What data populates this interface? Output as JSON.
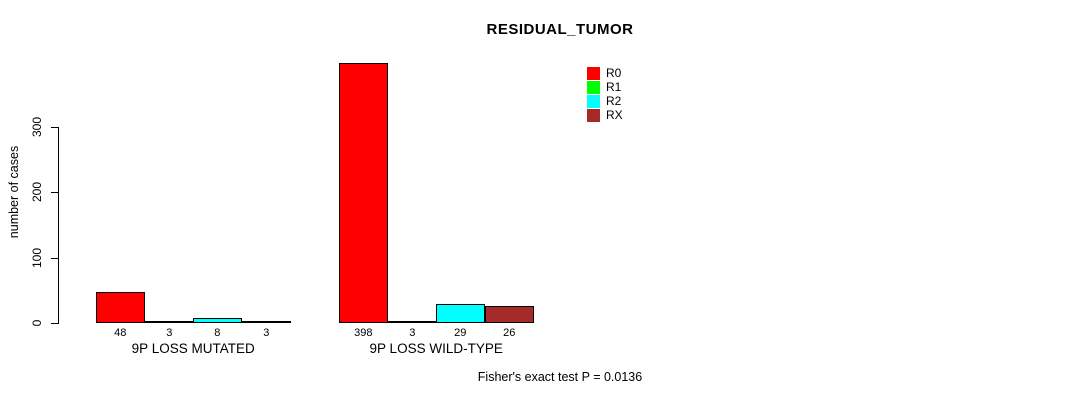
{
  "chart_data": {
    "type": "bar",
    "title": "RESIDUAL_TUMOR",
    "ylabel": "number of cases",
    "xlabel": "",
    "ylim": [
      0,
      398
    ],
    "yticks": [
      0,
      100,
      200,
      300
    ],
    "grid": false,
    "legend_position": "top-right",
    "categories": [
      "9P LOSS MUTATED",
      "9P LOSS WILD-TYPE"
    ],
    "series": [
      {
        "name": "R0",
        "color": "#FF0000",
        "values": [
          48,
          398
        ]
      },
      {
        "name": "R1",
        "color": "#00FF00",
        "values": [
          3,
          3
        ]
      },
      {
        "name": "R2",
        "color": "#00FFFF",
        "values": [
          8,
          29
        ]
      },
      {
        "name": "RX",
        "color": "#A52A2A",
        "values": [
          3,
          26
        ]
      }
    ],
    "annotation": "Fisher's exact test P = 0.0136"
  }
}
